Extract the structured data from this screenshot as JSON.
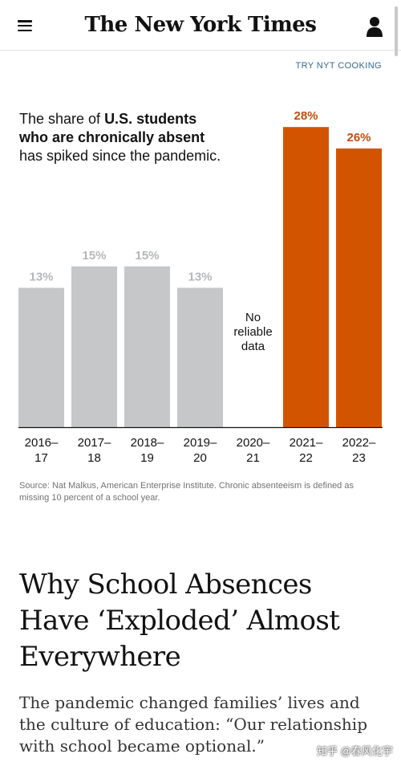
{
  "header": {
    "logo_text": "The New York Times"
  },
  "promo": {
    "try_cooking": "TRY NYT COOKING"
  },
  "chart_data": {
    "type": "bar",
    "title_parts": {
      "before": "The share of ",
      "bold": "U.S. students who are chronically absent",
      "after": " has spiked since the pandemic."
    },
    "categories": [
      [
        "2016–",
        "17"
      ],
      [
        "2017–",
        "18"
      ],
      [
        "2018–",
        "19"
      ],
      [
        "2019–",
        "20"
      ],
      [
        "2020–",
        "21"
      ],
      [
        "2021–",
        "22"
      ],
      [
        "2022–",
        "23"
      ]
    ],
    "values": [
      13,
      15,
      15,
      13,
      null,
      28,
      26
    ],
    "value_labels": [
      "13%",
      "15%",
      "15%",
      "13%",
      "",
      "28%",
      "26%"
    ],
    "missing_note": [
      "No",
      "reliable",
      "data"
    ],
    "colors": {
      "pre_pandemic": "#c5c7c9",
      "pre_pandemic_label": "#b5b7b9",
      "post_pandemic": "#d35400",
      "post_pandemic_label": "#c0500e"
    },
    "highlighted_categories": [
      5,
      6
    ],
    "ylim": [
      0,
      30
    ],
    "grid": false
  },
  "source_note": "Source: Nat Malkus, American Enterprise Institute. Chronic absenteeism is defined as missing 10 percent of a school year.",
  "article": {
    "headline": "Why School Absences Have ‘Exploded’ Almost Everywhere",
    "summary": "The pandemic changed families’ lives and the culture of education: “Our relationship with school became optional.”"
  },
  "watermark": "知乎 @春风化宇"
}
